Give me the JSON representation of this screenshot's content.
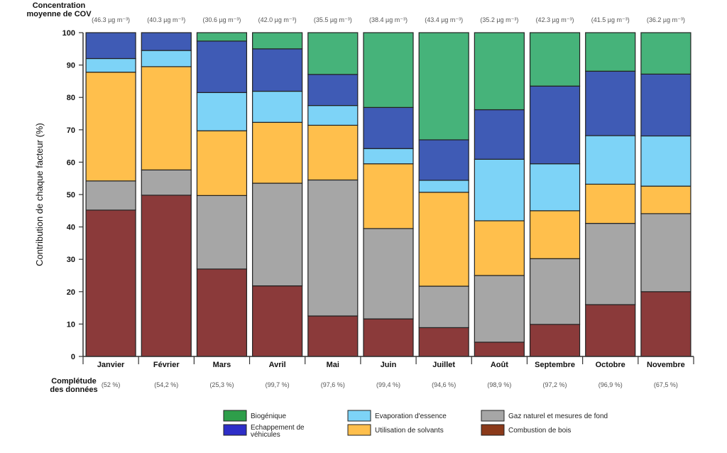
{
  "chart_data": {
    "type": "bar",
    "stacked": true,
    "percent_stacked": true,
    "ylabel": "Contribution de chaque facteur (%)",
    "ylim": [
      0,
      100
    ],
    "yticks": [
      0,
      10,
      20,
      30,
      40,
      50,
      60,
      70,
      80,
      90,
      100
    ],
    "grid": false,
    "legend_position": "bottom",
    "top_annotation_title": [
      "Concentration",
      "moyenne de COV"
    ],
    "bottom_annotation_title": [
      "Complétude",
      "des données"
    ],
    "categories": [
      "Janvier",
      "Février",
      "Mars",
      "Avril",
      "Mai",
      "Juin",
      "Juillet",
      "Août",
      "Septembre",
      "Octobre",
      "Novembre"
    ],
    "concentrations": [
      "(46.3 µg m⁻³)",
      "(40.3 µg m⁻³)",
      "(30.6 µg m⁻³)",
      "(42.0 µg m⁻³)",
      "(35.5 µg m⁻³)",
      "(38.4 µg m⁻³)",
      "(43.4 µg m⁻³)",
      "(35.2 µg m⁻³)",
      "(42.3 µg m⁻³)",
      "(41.5 µg m⁻³)",
      "(36.2 µg m⁻³)"
    ],
    "completeness": [
      "(52 %)",
      "(54,2 %)",
      "(25,3 %)",
      "(99,7 %)",
      "(97,6 %)",
      "(99,4 %)",
      "(94,6 %)",
      "(98,9 %)",
      "(97,2 %)",
      "(96,9 %)",
      "(67,5 %)"
    ],
    "series": [
      {
        "name": "Combustion de bois",
        "color": "#8B3A3A",
        "values": [
          45.2,
          49.8,
          27.0,
          21.8,
          12.5,
          11.6,
          8.9,
          4.4,
          9.9,
          16.0,
          20.0
        ]
      },
      {
        "name": "Gaz naturel et mesures de fond",
        "color": "#A6A6A6",
        "values": [
          9.0,
          7.8,
          22.7,
          31.7,
          42.0,
          27.9,
          12.8,
          20.6,
          20.3,
          25.1,
          24.1
        ]
      },
      {
        "name": "Utilisation de solvants",
        "color": "#FFBF4C",
        "values": [
          33.6,
          31.9,
          20.0,
          18.8,
          16.9,
          20.0,
          29.0,
          16.9,
          14.8,
          12.1,
          8.5
        ]
      },
      {
        "name": "Evaporation d'essence",
        "color": "#7DD3F7",
        "values": [
          4.2,
          5.0,
          11.8,
          9.6,
          6.1,
          4.7,
          3.7,
          19.0,
          14.5,
          15.0,
          15.5
        ]
      },
      {
        "name": "Echappement de véhicules",
        "color": "#3F5BB5",
        "values": [
          8.0,
          5.5,
          15.9,
          13.1,
          9.6,
          12.7,
          12.5,
          15.3,
          24.0,
          19.9,
          19.1
        ]
      },
      {
        "name": "Biogénique",
        "color": "#46B37A",
        "values": [
          0.0,
          0.0,
          2.6,
          5.0,
          12.9,
          23.1,
          33.1,
          23.8,
          16.5,
          11.9,
          12.8
        ]
      }
    ],
    "legend_order": [
      "Biogénique",
      "Evaporation d'essence",
      "Gaz naturel et mesures de fond",
      "Echappement de véhicules",
      "Utilisation de solvants",
      "Combustion de bois"
    ],
    "legend_labels": {
      "Biogénique": [
        "Biogénique"
      ],
      "Evaporation d'essence": [
        "Evaporation d'essence"
      ],
      "Gaz naturel et mesures de fond": [
        "Gaz naturel et mesures de fond"
      ],
      "Echappement de véhicules": [
        "Echappement de",
        "véhicules"
      ],
      "Utilisation de solvants": [
        "Utilisation de solvants"
      ],
      "Combustion de bois": [
        "Combustion de bois"
      ]
    },
    "legend_swatch_colors": {
      "Biogénique": "#2E9E4A",
      "Evaporation d'essence": "#7DD3F7",
      "Gaz naturel et mesures de fond": "#A6A6A6",
      "Echappement de véhicules": "#2E2EC8",
      "Utilisation de solvants": "#FFBF4C",
      "Combustion de bois": "#8B3A1A"
    }
  }
}
